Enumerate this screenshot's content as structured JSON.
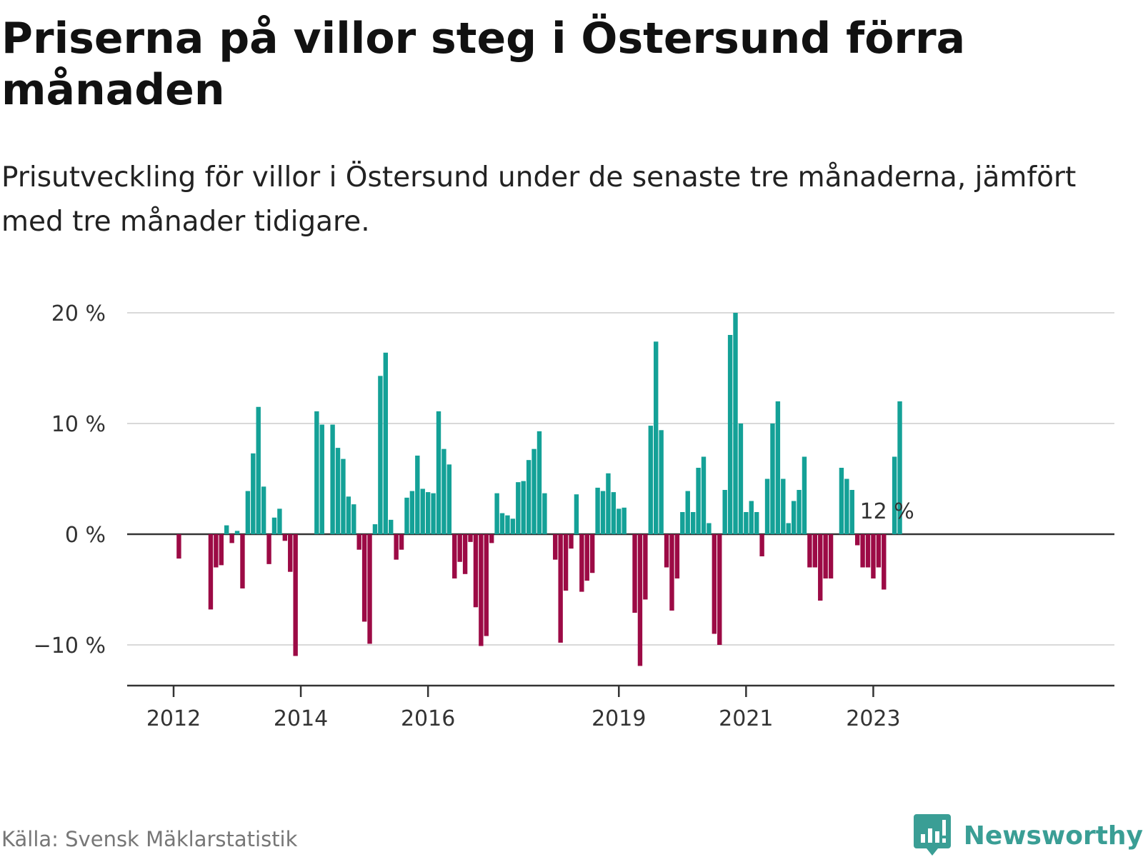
{
  "header": {
    "title": "Priserna på villor steg i Östersund förra månaden",
    "subtitle": "Prisutveckling för villor i Östersund under de senaste tre månaderna, jämfört med tre månader tidigare."
  },
  "footer": {
    "source": "Källa: Svensk Mäklarstatistik",
    "brand": "Newsworthy"
  },
  "colors": {
    "positive": "#14a197",
    "negative": "#9c0a45",
    "grid": "#d9d9d9",
    "baseline": "#333333",
    "brand": "#3a9e95"
  },
  "chart_data": {
    "type": "bar",
    "title": "Priserna på villor steg i Östersund förra månaden",
    "subtitle": "Prisutveckling för villor i Östersund under de senaste tre månaderna, jämfört med tre månader tidigare.",
    "xlabel": "",
    "ylabel": "",
    "ylim": [
      -13.5,
      20
    ],
    "grid": true,
    "y_ticks": [
      20,
      10,
      0,
      -10
    ],
    "y_tick_labels": [
      "20 %",
      "10 %",
      "0 %",
      "−10 %"
    ],
    "x_ticks": [
      {
        "label": "2012",
        "index": 0
      },
      {
        "label": "2014",
        "index": 24
      },
      {
        "label": "2016",
        "index": 48
      },
      {
        "label": "2019",
        "index": 84
      },
      {
        "label": "2021",
        "index": 108
      },
      {
        "label": "2023",
        "index": 132
      }
    ],
    "start": "2012-01",
    "annotation": {
      "text": "12 %",
      "index": 135
    },
    "values": [
      0,
      -2.2,
      0,
      0,
      0,
      0,
      0,
      -6.8,
      -3,
      -2.8,
      0.8,
      -0.8,
      0.3,
      -4.9,
      3.9,
      7.3,
      11.5,
      4.3,
      -2.7,
      1.5,
      2.3,
      -0.6,
      -3.4,
      -11,
      0,
      0,
      0,
      11.1,
      9.9,
      0,
      9.9,
      7.8,
      6.8,
      3.4,
      2.7,
      -1.4,
      -7.9,
      -9.9,
      0.9,
      14.3,
      16.4,
      1.3,
      -2.3,
      -1.4,
      3.3,
      3.9,
      7.1,
      4.1,
      3.8,
      3.7,
      11.1,
      7.7,
      6.3,
      -4,
      -2.5,
      -3.6,
      -0.7,
      -6.6,
      -10.1,
      -9.2,
      -0.8,
      3.7,
      1.9,
      1.7,
      1.4,
      4.7,
      4.8,
      6.7,
      7.7,
      9.3,
      3.7,
      0,
      -2.3,
      -9.8,
      -5.1,
      -1.3,
      3.6,
      -5.2,
      -4.2,
      -3.5,
      4.2,
      3.9,
      5.5,
      3.8,
      2.3,
      2.4,
      0,
      -7.1,
      -11.9,
      -5.9,
      9.8,
      17.4,
      9.4,
      -3,
      -6.9,
      -4,
      2,
      3.9,
      2,
      6,
      7,
      1,
      -9,
      -10,
      4,
      18,
      20,
      10,
      2,
      3,
      2,
      -2,
      5,
      10,
      12,
      5,
      1,
      3,
      4,
      7,
      -3,
      -3,
      -6,
      -4,
      -4,
      0,
      6,
      5,
      4,
      -1,
      -3,
      -3,
      -4,
      -3,
      -5,
      0,
      7,
      12
    ]
  }
}
